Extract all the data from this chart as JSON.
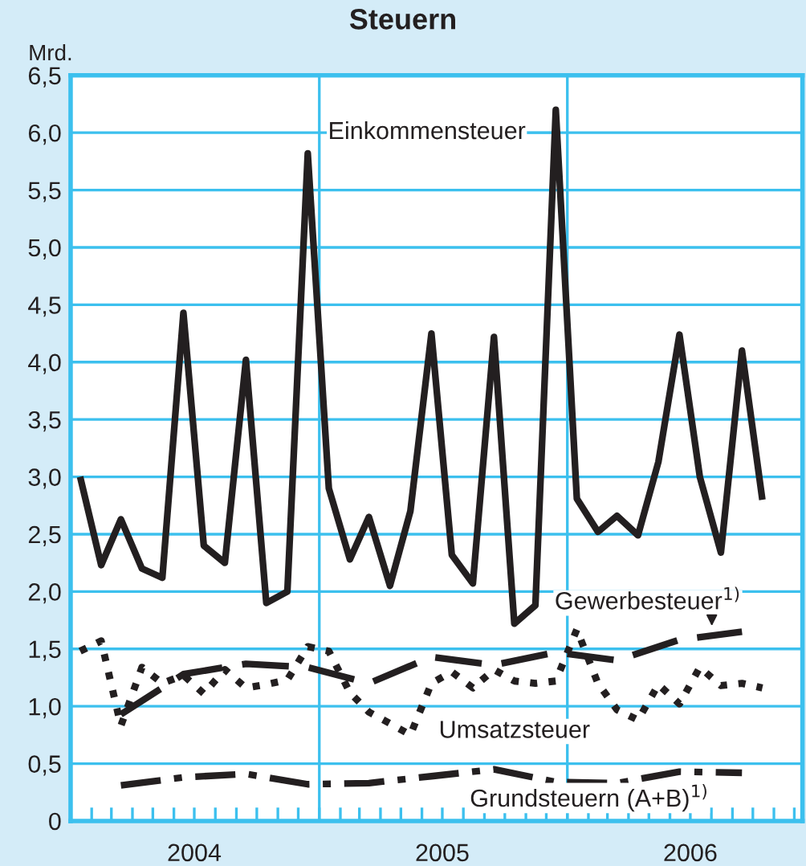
{
  "chart_data": {
    "type": "line",
    "title": "Steuern",
    "ylabel": "Mrd.",
    "xlim": [
      "2004-01-01",
      "2006-12-13"
    ],
    "xticks": [
      {
        "value": "2004-01-01",
        "label": null
      },
      {
        "value": "2004-02-01",
        "label": null
      },
      {
        "value": "2004-03-01",
        "label": null
      },
      {
        "value": "2004-04-01",
        "label": null
      },
      {
        "value": "2004-05-01",
        "label": null
      },
      {
        "value": "2004-06-01",
        "label": null
      },
      {
        "value": "2004-07-01",
        "label": "2004"
      },
      {
        "value": "2004-08-01",
        "label": null
      },
      {
        "value": "2004-09-01",
        "label": null
      },
      {
        "value": "2004-10-01",
        "label": null
      },
      {
        "value": "2004-11-01",
        "label": null
      },
      {
        "value": "2004-12-01",
        "label": null
      },
      {
        "value": "2005-01-01",
        "label": null
      },
      {
        "value": "2005-02-01",
        "label": null
      },
      {
        "value": "2005-03-01",
        "label": null
      },
      {
        "value": "2005-04-01",
        "label": null
      },
      {
        "value": "2005-05-01",
        "label": null
      },
      {
        "value": "2005-06-01",
        "label": null
      },
      {
        "value": "2005-07-01",
        "label": "2005"
      },
      {
        "value": "2005-08-01",
        "label": null
      },
      {
        "value": "2005-09-01",
        "label": null
      },
      {
        "value": "2005-10-01",
        "label": null
      },
      {
        "value": "2005-11-01",
        "label": null
      },
      {
        "value": "2005-12-01",
        "label": null
      },
      {
        "value": "2006-01-01",
        "label": null
      },
      {
        "value": "2006-02-01",
        "label": null
      },
      {
        "value": "2006-03-01",
        "label": null
      },
      {
        "value": "2006-04-01",
        "label": null
      },
      {
        "value": "2006-05-01",
        "label": null
      },
      {
        "value": "2006-06-01",
        "label": null
      },
      {
        "value": "2006-07-01",
        "label": "2006"
      },
      {
        "value": "2006-08-01",
        "label": null
      },
      {
        "value": "2006-09-01",
        "label": null
      },
      {
        "value": "2006-10-01",
        "label": null
      },
      {
        "value": "2006-11-01",
        "label": null
      },
      {
        "value": "2006-12-01",
        "label": null
      }
    ],
    "ylim": [
      0,
      6.5
    ],
    "yticks": [
      0,
      {
        "value": 0.5,
        "label": "0,5"
      },
      {
        "value": 1,
        "label": "1,0"
      },
      {
        "value": 1.5,
        "label": "1,5"
      },
      {
        "value": 2,
        "label": "2,0"
      },
      {
        "value": 2.5,
        "label": "2,5"
      },
      {
        "value": 3,
        "label": "3,0"
      },
      {
        "value": 3.5,
        "label": "3,5"
      },
      {
        "value": 4,
        "label": "4,0"
      },
      {
        "value": 4.5,
        "label": "4,5"
      },
      {
        "value": 5,
        "label": "5,0"
      },
      {
        "value": 5.5,
        "label": "5,5"
      },
      {
        "value": 6,
        "label": "6,0"
      },
      {
        "value": 6.5,
        "label": "6,5"
      }
    ],
    "grid": "y",
    "legend": false,
    "marker": "none",
    "ref_lines": [
      {
        "axis": "x",
        "value": "2005-01-01",
        "color": "#3cc0ee"
      },
      {
        "axis": "x",
        "value": "2006-01-01",
        "color": "#3cc0ee"
      }
    ],
    "series": [
      {
        "name": "Einkommensteuer",
        "color": "#231f20",
        "line_style": "solid",
        "x": [
          "2004-01-15",
          "2004-02-15",
          "2004-03-15",
          "2004-04-15",
          "2004-05-15",
          "2004-06-15",
          "2004-07-15",
          "2004-08-15",
          "2004-09-15",
          "2004-10-15",
          "2004-11-15",
          "2004-12-15",
          "2005-01-15",
          "2005-02-15",
          "2005-03-15",
          "2005-04-15",
          "2005-05-15",
          "2005-06-15",
          "2005-07-15",
          "2005-08-15",
          "2005-09-15",
          "2005-10-15",
          "2005-11-15",
          "2005-12-15",
          "2006-01-15",
          "2006-02-15",
          "2006-03-15",
          "2006-04-15",
          "2006-05-15",
          "2006-06-15",
          "2006-07-15",
          "2006-08-15",
          "2006-09-15",
          "2006-10-15"
        ],
        "values": [
          3.0,
          2.23,
          2.63,
          2.2,
          2.12,
          4.43,
          2.4,
          2.25,
          4.02,
          1.9,
          2.0,
          5.82,
          2.9,
          2.28,
          2.65,
          2.05,
          2.7,
          4.25,
          2.32,
          2.07,
          4.22,
          1.72,
          1.88,
          6.2,
          2.81,
          2.52,
          2.66,
          2.49,
          3.13,
          4.24,
          3.0,
          2.34,
          4.1,
          2.8
        ]
      },
      {
        "name": "Umsatzsteuer",
        "color": "#231f20",
        "line_style": "dotted",
        "x": [
          "2004-01-15",
          "2004-02-15",
          "2004-03-15",
          "2004-04-15",
          "2004-05-15",
          "2004-06-15",
          "2004-07-15",
          "2004-08-15",
          "2004-09-15",
          "2004-10-15",
          "2004-11-15",
          "2004-12-15",
          "2005-01-15",
          "2005-02-15",
          "2005-03-15",
          "2005-04-15",
          "2005-05-15",
          "2005-06-15",
          "2005-07-15",
          "2005-08-15",
          "2005-09-15",
          "2005-10-15",
          "2005-11-15",
          "2005-12-15",
          "2006-01-15",
          "2006-02-15",
          "2006-03-15",
          "2006-04-15",
          "2006-05-15",
          "2006-06-15",
          "2006-07-15",
          "2006-08-15",
          "2006-09-15",
          "2006-10-15"
        ],
        "values": [
          1.48,
          1.57,
          0.83,
          1.34,
          1.2,
          1.27,
          1.11,
          1.32,
          1.16,
          1.19,
          1.23,
          1.52,
          1.48,
          1.12,
          0.95,
          0.85,
          0.75,
          1.2,
          1.3,
          1.16,
          1.32,
          1.22,
          1.2,
          1.22,
          1.67,
          1.2,
          0.97,
          0.88,
          1.19,
          1.02,
          1.34,
          1.18,
          1.2,
          1.16
        ]
      },
      {
        "name": "Gewerbesteuer$^{1)}$",
        "color": "#231f20",
        "line_style": "dashed",
        "x": [
          "2004-03-15",
          "2004-06-15",
          "2004-09-15",
          "2004-12-15",
          "2005-03-15",
          "2005-06-15",
          "2005-09-15",
          "2005-12-15",
          "2006-03-15",
          "2006-06-15",
          "2006-09-15"
        ],
        "values": [
          0.93,
          1.28,
          1.37,
          1.34,
          1.2,
          1.43,
          1.36,
          1.47,
          1.4,
          1.58,
          1.65
        ]
      },
      {
        "name": "Grundsteuern (A+B)$^{1)}$",
        "color": "#231f20",
        "line_style": "dashdot",
        "x": [
          "2004-03-15",
          "2004-06-15",
          "2004-09-15",
          "2004-12-15",
          "2005-03-15",
          "2005-06-15",
          "2005-09-15",
          "2005-12-15",
          "2006-03-15",
          "2006-06-15",
          "2006-09-15"
        ],
        "values": [
          0.31,
          0.38,
          0.41,
          0.32,
          0.33,
          0.39,
          0.45,
          0.34,
          0.33,
          0.43,
          0.42
        ]
      }
    ]
  }
}
